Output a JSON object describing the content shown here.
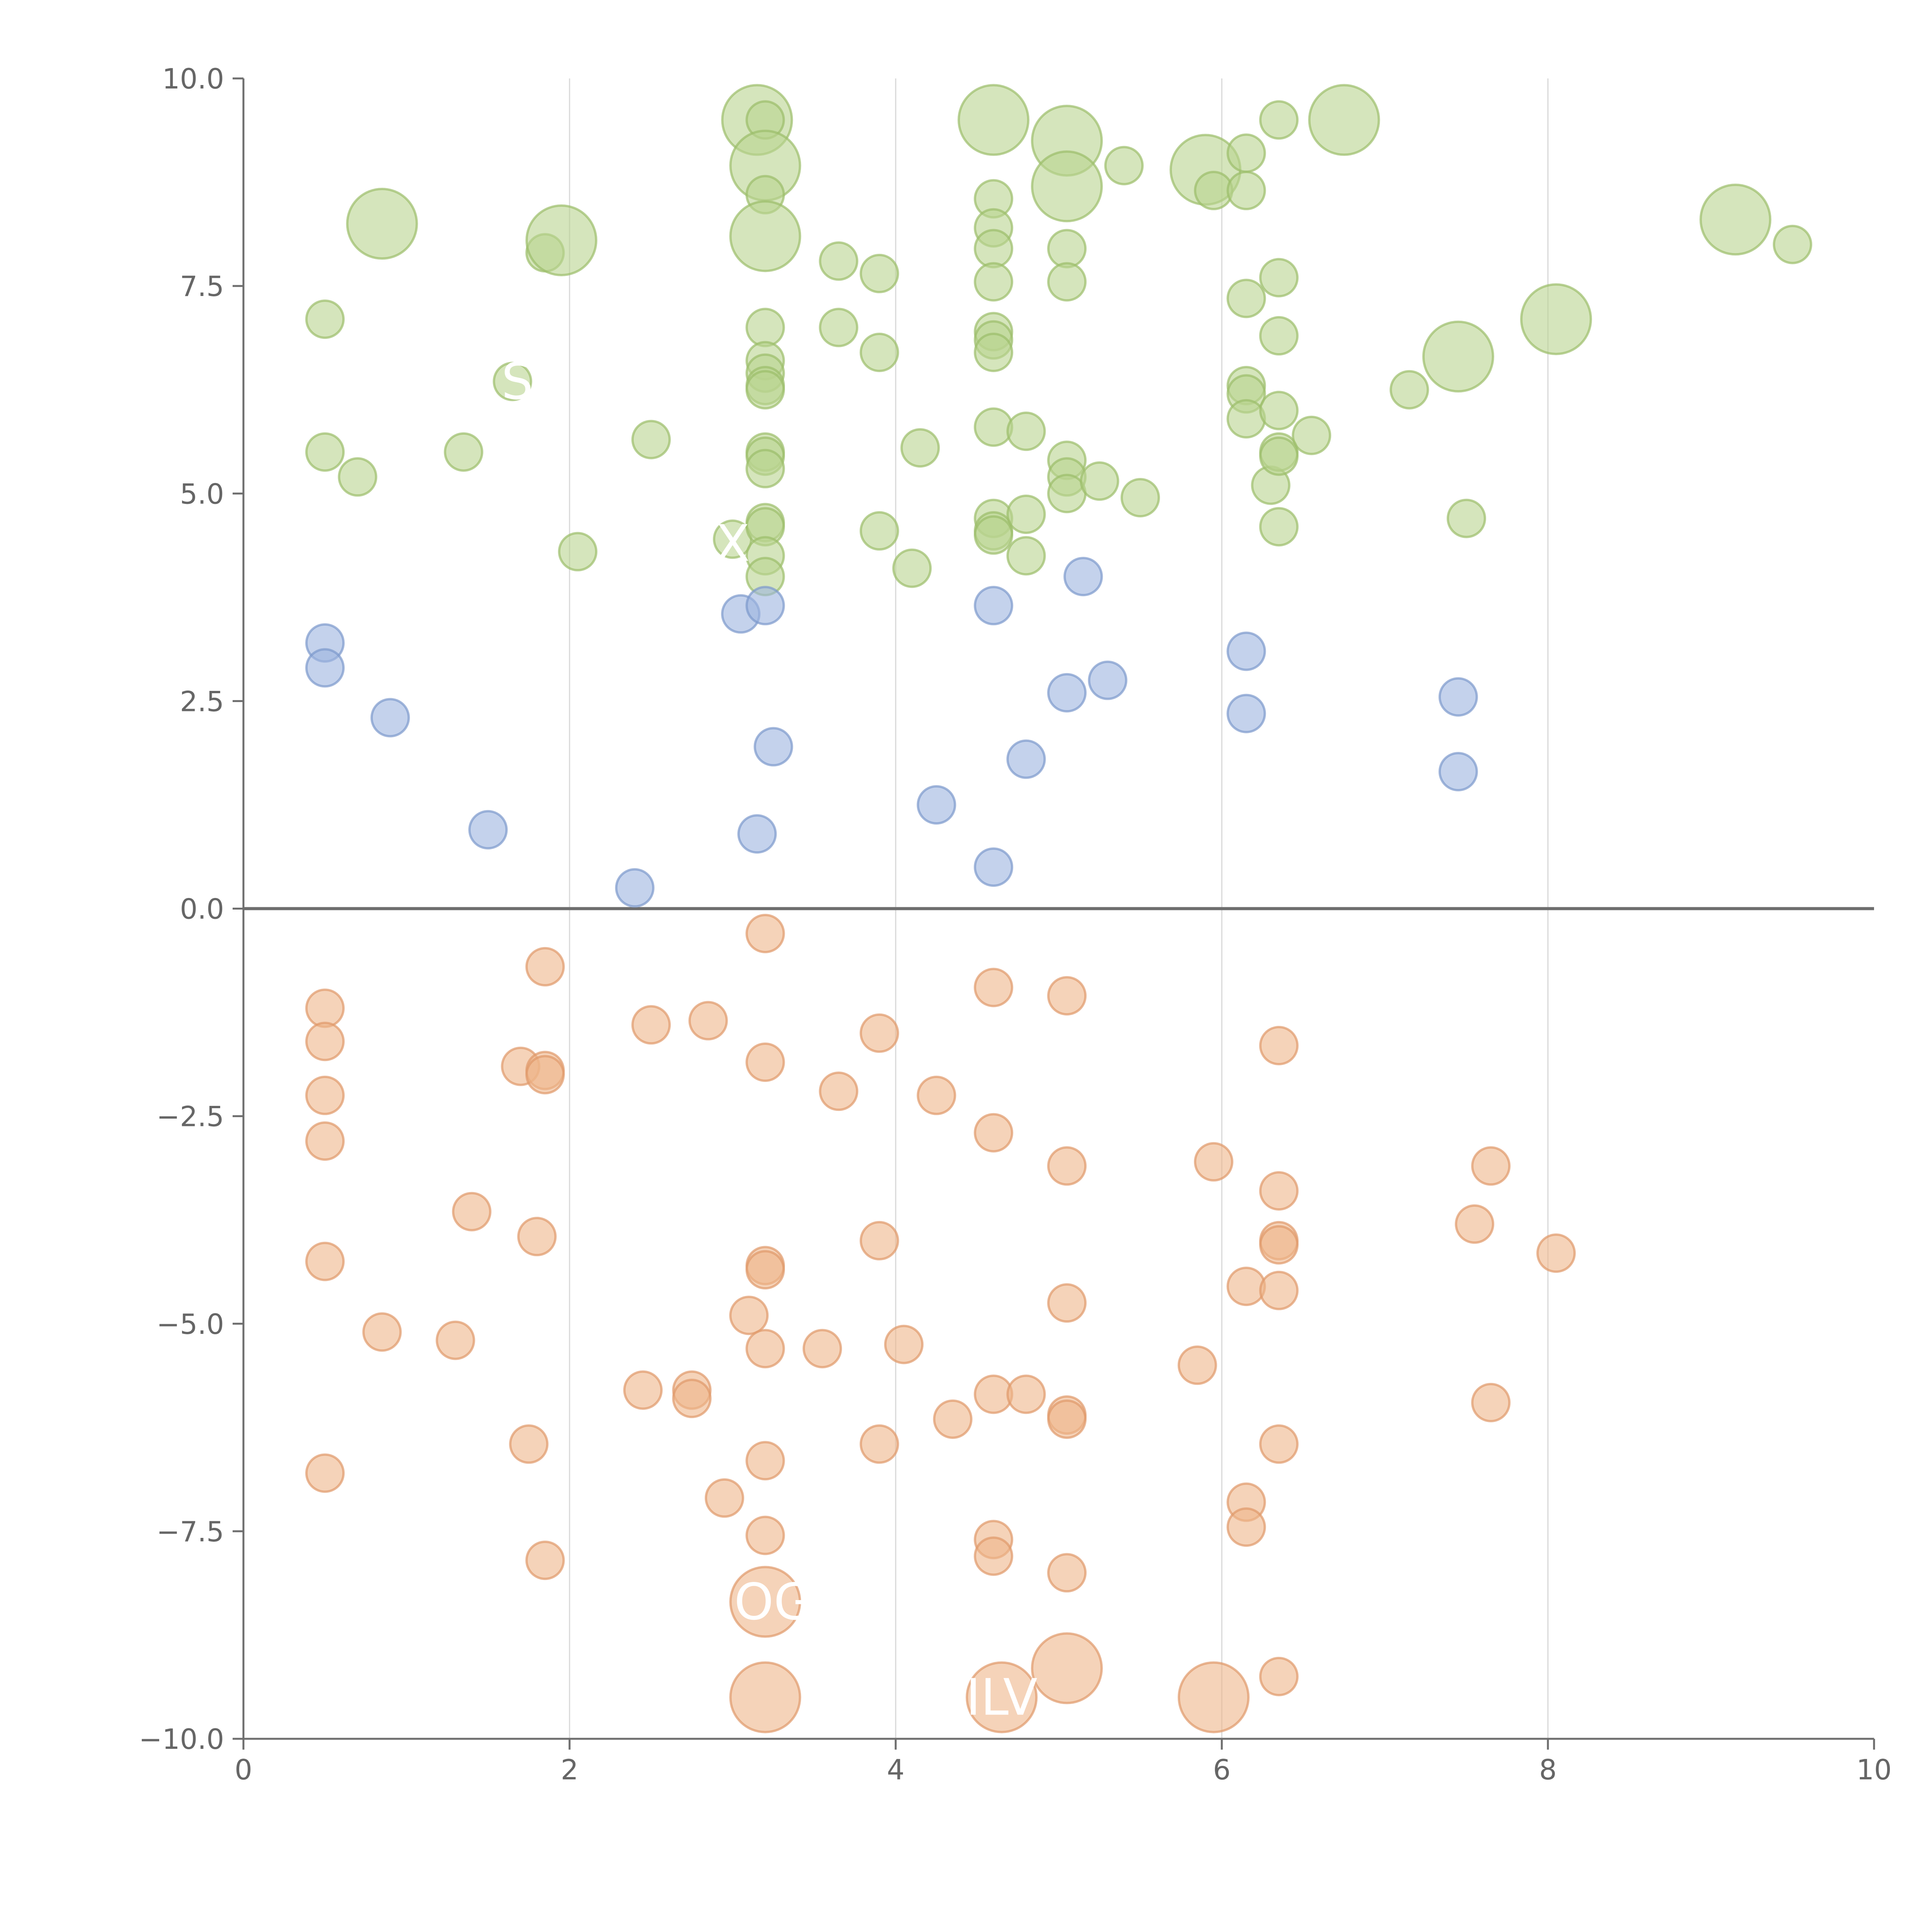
{
  "chart_data": {
    "type": "scatter",
    "title": "",
    "xlabel": "",
    "ylabel": "",
    "xlim": [
      0,
      10
    ],
    "ylim": [
      -10,
      10
    ],
    "x_ticks": [
      "0",
      "2",
      "4",
      "6",
      "8",
      "10"
    ],
    "y_ticks": [
      "-10.0",
      "-7.5",
      "-5.0",
      "-2.5",
      "0.0",
      "2.5",
      "5.0",
      "7.5",
      "10.0"
    ],
    "grid": "vertical",
    "legend": "none",
    "series": [
      {
        "name": "positive-high",
        "fill": "#b9d48f",
        "stroke": "#9bbe6a",
        "points": [
          {
            "x": 0.5,
            "y": 7.1
          },
          {
            "x": 0.5,
            "y": 5.5
          },
          {
            "x": 0.7,
            "y": 5.2
          },
          {
            "x": 0.85,
            "y": 8.25,
            "big": true
          },
          {
            "x": 1.35,
            "y": 5.5
          },
          {
            "x": 1.65,
            "y": 6.35
          },
          {
            "x": 1.85,
            "y": 7.9
          },
          {
            "x": 1.95,
            "y": 8.05,
            "big": true
          },
          {
            "x": 2.05,
            "y": 4.3
          },
          {
            "x": 2.5,
            "y": 5.65
          },
          {
            "x": 3.0,
            "y": 4.45
          },
          {
            "x": 3.15,
            "y": 9.5,
            "big": true
          },
          {
            "x": 3.2,
            "y": 9.5
          },
          {
            "x": 3.2,
            "y": 8.95,
            "big": true
          },
          {
            "x": 3.2,
            "y": 8.6
          },
          {
            "x": 3.2,
            "y": 8.1,
            "big": true
          },
          {
            "x": 3.2,
            "y": 7.0
          },
          {
            "x": 3.2,
            "y": 6.6
          },
          {
            "x": 3.2,
            "y": 6.45
          },
          {
            "x": 3.2,
            "y": 6.3
          },
          {
            "x": 3.2,
            "y": 6.25
          },
          {
            "x": 3.2,
            "y": 5.5
          },
          {
            "x": 3.2,
            "y": 5.45
          },
          {
            "x": 3.2,
            "y": 5.3
          },
          {
            "x": 3.2,
            "y": 4.65
          },
          {
            "x": 3.2,
            "y": 4.6
          },
          {
            "x": 3.2,
            "y": 4.25
          },
          {
            "x": 3.2,
            "y": 4.0
          },
          {
            "x": 3.65,
            "y": 7.8
          },
          {
            "x": 3.65,
            "y": 7.0
          },
          {
            "x": 3.9,
            "y": 7.65
          },
          {
            "x": 3.9,
            "y": 6.7
          },
          {
            "x": 3.9,
            "y": 4.55
          },
          {
            "x": 4.1,
            "y": 4.1
          },
          {
            "x": 4.15,
            "y": 5.55
          },
          {
            "x": 4.6,
            "y": 9.5,
            "big": true
          },
          {
            "x": 4.6,
            "y": 8.55
          },
          {
            "x": 4.6,
            "y": 8.2
          },
          {
            "x": 4.6,
            "y": 7.95
          },
          {
            "x": 4.6,
            "y": 7.55
          },
          {
            "x": 4.6,
            "y": 6.95
          },
          {
            "x": 4.6,
            "y": 6.85
          },
          {
            "x": 4.6,
            "y": 6.7
          },
          {
            "x": 4.6,
            "y": 5.8
          },
          {
            "x": 4.6,
            "y": 4.7
          },
          {
            "x": 4.6,
            "y": 4.55
          },
          {
            "x": 4.6,
            "y": 4.5
          },
          {
            "x": 4.8,
            "y": 5.75
          },
          {
            "x": 4.8,
            "y": 4.75
          },
          {
            "x": 4.8,
            "y": 4.25
          },
          {
            "x": 5.05,
            "y": 9.25,
            "big": true
          },
          {
            "x": 5.05,
            "y": 8.7,
            "big": true
          },
          {
            "x": 5.05,
            "y": 7.95
          },
          {
            "x": 5.05,
            "y": 7.55
          },
          {
            "x": 5.05,
            "y": 5.4
          },
          {
            "x": 5.05,
            "y": 5.2
          },
          {
            "x": 5.05,
            "y": 5.0
          },
          {
            "x": 5.25,
            "y": 5.15
          },
          {
            "x": 5.4,
            "y": 8.95
          },
          {
            "x": 5.5,
            "y": 4.95
          },
          {
            "x": 5.9,
            "y": 8.9,
            "big": true
          },
          {
            "x": 5.95,
            "y": 8.65
          },
          {
            "x": 6.15,
            "y": 9.1
          },
          {
            "x": 6.15,
            "y": 8.65
          },
          {
            "x": 6.15,
            "y": 7.35
          },
          {
            "x": 6.15,
            "y": 6.3
          },
          {
            "x": 6.15,
            "y": 6.2
          },
          {
            "x": 6.15,
            "y": 5.9
          },
          {
            "x": 6.3,
            "y": 5.1
          },
          {
            "x": 6.35,
            "y": 9.5
          },
          {
            "x": 6.35,
            "y": 7.6
          },
          {
            "x": 6.35,
            "y": 6.9
          },
          {
            "x": 6.35,
            "y": 6.0
          },
          {
            "x": 6.35,
            "y": 5.5
          },
          {
            "x": 6.35,
            "y": 5.45
          },
          {
            "x": 6.35,
            "y": 4.6
          },
          {
            "x": 6.55,
            "y": 5.7
          },
          {
            "x": 6.75,
            "y": 9.5,
            "big": true
          },
          {
            "x": 7.15,
            "y": 6.25
          },
          {
            "x": 7.45,
            "y": 6.65,
            "big": true
          },
          {
            "x": 7.5,
            "y": 4.7
          },
          {
            "x": 8.05,
            "y": 7.1,
            "big": true
          },
          {
            "x": 9.15,
            "y": 8.3,
            "big": true
          },
          {
            "x": 9.5,
            "y": 8.0
          }
        ]
      },
      {
        "name": "positive-low",
        "fill": "#9db4df",
        "stroke": "#7c98cc",
        "points": [
          {
            "x": 0.5,
            "y": 3.2
          },
          {
            "x": 0.5,
            "y": 2.9
          },
          {
            "x": 0.9,
            "y": 2.3
          },
          {
            "x": 1.5,
            "y": 0.95
          },
          {
            "x": 2.4,
            "y": 0.25
          },
          {
            "x": 3.05,
            "y": 3.55
          },
          {
            "x": 3.15,
            "y": 0.9
          },
          {
            "x": 3.2,
            "y": 3.65
          },
          {
            "x": 3.25,
            "y": 1.95
          },
          {
            "x": 4.25,
            "y": 1.25
          },
          {
            "x": 4.6,
            "y": 3.65
          },
          {
            "x": 4.6,
            "y": 0.5
          },
          {
            "x": 4.8,
            "y": 1.8
          },
          {
            "x": 5.05,
            "y": 2.6
          },
          {
            "x": 5.15,
            "y": 4.0
          },
          {
            "x": 5.3,
            "y": 2.75
          },
          {
            "x": 6.15,
            "y": 3.1
          },
          {
            "x": 6.15,
            "y": 2.35
          },
          {
            "x": 7.45,
            "y": 2.55
          },
          {
            "x": 7.45,
            "y": 1.65
          }
        ]
      },
      {
        "name": "negative",
        "fill": "#eeb58a",
        "stroke": "#e0996a",
        "points": [
          {
            "x": 0.5,
            "y": -1.2
          },
          {
            "x": 0.5,
            "y": -1.6
          },
          {
            "x": 0.5,
            "y": -2.25
          },
          {
            "x": 0.5,
            "y": -2.8
          },
          {
            "x": 0.5,
            "y": -4.25
          },
          {
            "x": 0.5,
            "y": -6.8
          },
          {
            "x": 0.85,
            "y": -5.1
          },
          {
            "x": 1.3,
            "y": -5.2
          },
          {
            "x": 1.4,
            "y": -3.65
          },
          {
            "x": 1.7,
            "y": -1.9
          },
          {
            "x": 1.75,
            "y": -6.45
          },
          {
            "x": 1.8,
            "y": -3.95
          },
          {
            "x": 1.85,
            "y": -0.7
          },
          {
            "x": 1.85,
            "y": -1.95
          },
          {
            "x": 1.85,
            "y": -2.0
          },
          {
            "x": 1.85,
            "y": -7.85
          },
          {
            "x": 2.45,
            "y": -5.8
          },
          {
            "x": 2.5,
            "y": -1.4
          },
          {
            "x": 2.75,
            "y": -5.8
          },
          {
            "x": 2.75,
            "y": -5.9
          },
          {
            "x": 2.85,
            "y": -1.35
          },
          {
            "x": 2.95,
            "y": -7.1
          },
          {
            "x": 3.1,
            "y": -4.9
          },
          {
            "x": 3.2,
            "y": -0.3
          },
          {
            "x": 3.2,
            "y": -1.85
          },
          {
            "x": 3.2,
            "y": -4.3
          },
          {
            "x": 3.2,
            "y": -4.35
          },
          {
            "x": 3.2,
            "y": -5.3
          },
          {
            "x": 3.2,
            "y": -6.65
          },
          {
            "x": 3.2,
            "y": -7.55
          },
          {
            "x": 3.2,
            "y": -8.35,
            "big": true
          },
          {
            "x": 3.2,
            "y": -9.5,
            "big": true
          },
          {
            "x": 3.55,
            "y": -5.3
          },
          {
            "x": 3.65,
            "y": -2.2
          },
          {
            "x": 3.9,
            "y": -1.5
          },
          {
            "x": 3.9,
            "y": -4.0
          },
          {
            "x": 3.9,
            "y": -6.45
          },
          {
            "x": 4.05,
            "y": -5.25
          },
          {
            "x": 4.25,
            "y": -2.25
          },
          {
            "x": 4.35,
            "y": -6.15
          },
          {
            "x": 4.6,
            "y": -0.95
          },
          {
            "x": 4.6,
            "y": -2.7
          },
          {
            "x": 4.6,
            "y": -5.85
          },
          {
            "x": 4.6,
            "y": -7.6
          },
          {
            "x": 4.6,
            "y": -7.8
          },
          {
            "x": 4.65,
            "y": -9.5,
            "big": true
          },
          {
            "x": 4.8,
            "y": -5.85
          },
          {
            "x": 5.05,
            "y": -1.05
          },
          {
            "x": 5.05,
            "y": -3.1
          },
          {
            "x": 5.05,
            "y": -4.75
          },
          {
            "x": 5.05,
            "y": -6.1
          },
          {
            "x": 5.05,
            "y": -6.15
          },
          {
            "x": 5.05,
            "y": -8.0
          },
          {
            "x": 5.05,
            "y": -9.15,
            "big": true
          },
          {
            "x": 5.85,
            "y": -5.5
          },
          {
            "x": 5.95,
            "y": -3.05
          },
          {
            "x": 5.95,
            "y": -9.5,
            "big": true
          },
          {
            "x": 6.15,
            "y": -4.55
          },
          {
            "x": 6.15,
            "y": -7.15
          },
          {
            "x": 6.15,
            "y": -7.45
          },
          {
            "x": 6.35,
            "y": -1.65
          },
          {
            "x": 6.35,
            "y": -3.4
          },
          {
            "x": 6.35,
            "y": -4.0
          },
          {
            "x": 6.35,
            "y": -4.05
          },
          {
            "x": 6.35,
            "y": -4.6
          },
          {
            "x": 6.35,
            "y": -6.45
          },
          {
            "x": 6.35,
            "y": -9.25
          },
          {
            "x": 7.55,
            "y": -3.8
          },
          {
            "x": 7.65,
            "y": -3.1
          },
          {
            "x": 7.65,
            "y": -5.95
          },
          {
            "x": 8.05,
            "y": -4.15
          }
        ]
      }
    ],
    "annotations": [
      {
        "text": "S",
        "x": 1.68,
        "y": 6.35
      },
      {
        "text": "X",
        "x": 3.0,
        "y": 4.4
      },
      {
        "text": "OG",
        "x": 3.25,
        "y": -8.35
      },
      {
        "text": "ILV",
        "x": 4.65,
        "y": -9.5
      }
    ]
  }
}
